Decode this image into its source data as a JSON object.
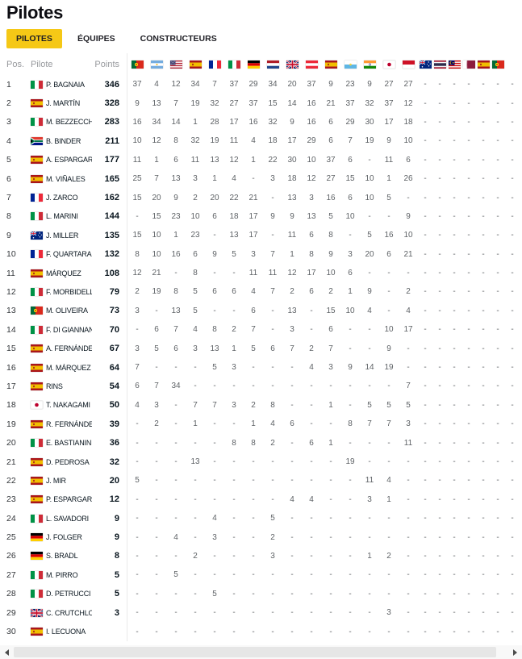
{
  "page": {
    "title": "Pilotes"
  },
  "colors": {
    "accent_yellow": "#f5c816",
    "header_text": "#97999d",
    "name_text": "#0a161f",
    "value_text": "#5e6266"
  },
  "tabs": [
    {
      "label": "PILOTES",
      "active": true
    },
    {
      "label": "ÉQUIPES",
      "active": false
    },
    {
      "label": "CONSTRUCTEURS",
      "active": false
    }
  ],
  "table": {
    "headers": {
      "pos": "Pos.",
      "rider": "Pilote",
      "points": "Points"
    },
    "race_flags": [
      "por",
      "arg",
      "usa",
      "esp",
      "fra",
      "ita",
      "ger",
      "ned",
      "gbr",
      "aut",
      "esp",
      "smr",
      "ind",
      "jpn",
      "ina",
      "aus",
      "tha",
      "mal",
      "qat",
      "esp",
      "por",
      ""
    ],
    "rows": [
      {
        "pos": "1",
        "nat": "ita",
        "name": "P. BAGNAIA",
        "points": "346",
        "results": [
          "37",
          "4",
          "12",
          "34",
          "7",
          "37",
          "29",
          "34",
          "20",
          "37",
          "9",
          "23",
          "9",
          "27",
          "27",
          "-",
          "-",
          "-",
          "-",
          "-",
          "-",
          "-"
        ]
      },
      {
        "pos": "2",
        "nat": "esp",
        "name": "J. MARTÍN",
        "points": "328",
        "results": [
          "9",
          "13",
          "7",
          "19",
          "32",
          "27",
          "37",
          "15",
          "14",
          "16",
          "21",
          "37",
          "32",
          "37",
          "12",
          "-",
          "-",
          "-",
          "-",
          "-",
          "-",
          "-"
        ]
      },
      {
        "pos": "3",
        "nat": "ita",
        "name": "M. BEZZECCHI",
        "points": "283",
        "results": [
          "16",
          "34",
          "14",
          "1",
          "28",
          "17",
          "16",
          "32",
          "9",
          "16",
          "6",
          "29",
          "30",
          "17",
          "18",
          "-",
          "-",
          "-",
          "-",
          "-",
          "-",
          "-"
        ]
      },
      {
        "pos": "4",
        "nat": "rsa",
        "name": "B. BINDER",
        "points": "211",
        "results": [
          "10",
          "12",
          "8",
          "32",
          "19",
          "11",
          "4",
          "18",
          "17",
          "29",
          "6",
          "7",
          "19",
          "9",
          "10",
          "-",
          "-",
          "-",
          "-",
          "-",
          "-",
          "-"
        ]
      },
      {
        "pos": "5",
        "nat": "esp",
        "name": "A. ESPARGARÓ",
        "points": "177",
        "results": [
          "11",
          "1",
          "6",
          "11",
          "13",
          "12",
          "1",
          "22",
          "30",
          "10",
          "37",
          "6",
          "-",
          "11",
          "6",
          "-",
          "-",
          "-",
          "-",
          "-",
          "-",
          "-"
        ]
      },
      {
        "pos": "6",
        "nat": "esp",
        "name": "M. VIÑALES",
        "points": "165",
        "results": [
          "25",
          "7",
          "13",
          "3",
          "1",
          "4",
          "-",
          "3",
          "18",
          "12",
          "27",
          "15",
          "10",
          "1",
          "26",
          "-",
          "-",
          "-",
          "-",
          "-",
          "-",
          "-"
        ]
      },
      {
        "pos": "7",
        "nat": "fra",
        "name": "J. ZARCO",
        "points": "162",
        "results": [
          "15",
          "20",
          "9",
          "2",
          "20",
          "22",
          "21",
          "-",
          "13",
          "3",
          "16",
          "6",
          "10",
          "5",
          "-",
          "-",
          "-",
          "-",
          "-",
          "-",
          "-",
          "-"
        ]
      },
      {
        "pos": "8",
        "nat": "ita",
        "name": "L. MARINI",
        "points": "144",
        "results": [
          "-",
          "15",
          "23",
          "10",
          "6",
          "18",
          "17",
          "9",
          "9",
          "13",
          "5",
          "10",
          "-",
          "-",
          "9",
          "-",
          "-",
          "-",
          "-",
          "-",
          "-",
          "-"
        ]
      },
      {
        "pos": "9",
        "nat": "aus",
        "name": "J. MILLER",
        "points": "135",
        "results": [
          "15",
          "10",
          "1",
          "23",
          "-",
          "13",
          "17",
          "-",
          "11",
          "6",
          "8",
          "-",
          "5",
          "16",
          "10",
          "-",
          "-",
          "-",
          "-",
          "-",
          "-",
          "-"
        ]
      },
      {
        "pos": "10",
        "nat": "fra",
        "name": "F. QUARTARARO",
        "points": "132",
        "results": [
          "8",
          "10",
          "16",
          "6",
          "9",
          "5",
          "3",
          "7",
          "1",
          "8",
          "9",
          "3",
          "20",
          "6",
          "21",
          "-",
          "-",
          "-",
          "-",
          "-",
          "-",
          "-"
        ]
      },
      {
        "pos": "11",
        "nat": "esp",
        "name": "MÁRQUEZ",
        "points": "108",
        "results": [
          "12",
          "21",
          "-",
          "8",
          "-",
          "-",
          "11",
          "11",
          "12",
          "17",
          "10",
          "6",
          "-",
          "-",
          "-",
          "-",
          "-",
          "-",
          "-",
          "-",
          "-",
          "-"
        ]
      },
      {
        "pos": "12",
        "nat": "ita",
        "name": "F. MORBIDELLI",
        "points": "79",
        "results": [
          "2",
          "19",
          "8",
          "5",
          "6",
          "6",
          "4",
          "7",
          "2",
          "6",
          "2",
          "1",
          "9",
          "-",
          "2",
          "-",
          "-",
          "-",
          "-",
          "-",
          "-",
          "-"
        ]
      },
      {
        "pos": "13",
        "nat": "por",
        "name": "M. OLIVEIRA",
        "points": "73",
        "results": [
          "3",
          "-",
          "13",
          "5",
          "-",
          "-",
          "6",
          "-",
          "13",
          "-",
          "15",
          "10",
          "4",
          "-",
          "4",
          "-",
          "-",
          "-",
          "-",
          "-",
          "-",
          "-"
        ]
      },
      {
        "pos": "14",
        "nat": "ita",
        "name": "F. DI GIANNANTONIO",
        "points": "70",
        "results": [
          "-",
          "6",
          "7",
          "4",
          "8",
          "2",
          "7",
          "-",
          "3",
          "-",
          "6",
          "-",
          "-",
          "10",
          "17",
          "-",
          "-",
          "-",
          "-",
          "-",
          "-",
          "-"
        ]
      },
      {
        "pos": "15",
        "nat": "esp",
        "name": "A. FERNÁNDEZ",
        "points": "67",
        "results": [
          "3",
          "5",
          "6",
          "3",
          "13",
          "1",
          "5",
          "6",
          "7",
          "2",
          "7",
          "-",
          "-",
          "9",
          "-",
          "-",
          "-",
          "-",
          "-",
          "-",
          "-",
          "-"
        ]
      },
      {
        "pos": "16",
        "nat": "esp",
        "name": "M. MÁRQUEZ",
        "points": "64",
        "results": [
          "7",
          "-",
          "-",
          "-",
          "5",
          "3",
          "-",
          "-",
          "-",
          "4",
          "3",
          "9",
          "14",
          "19",
          "-",
          "-",
          "-",
          "-",
          "-",
          "-",
          "-",
          "-"
        ]
      },
      {
        "pos": "17",
        "nat": "esp",
        "name": "RINS",
        "points": "54",
        "results": [
          "6",
          "7",
          "34",
          "-",
          "-",
          "-",
          "-",
          "-",
          "-",
          "-",
          "-",
          "-",
          "-",
          "-",
          "7",
          "-",
          "-",
          "-",
          "-",
          "-",
          "-",
          "-"
        ]
      },
      {
        "pos": "18",
        "nat": "jpn",
        "name": "T. NAKAGAMI",
        "points": "50",
        "results": [
          "4",
          "3",
          "-",
          "7",
          "7",
          "3",
          "2",
          "8",
          "-",
          "-",
          "1",
          "-",
          "5",
          "5",
          "5",
          "-",
          "-",
          "-",
          "-",
          "-",
          "-",
          "-"
        ]
      },
      {
        "pos": "19",
        "nat": "esp",
        "name": "R. FERNÁNDEZ",
        "points": "39",
        "results": [
          "-",
          "2",
          "-",
          "1",
          "-",
          "-",
          "1",
          "4",
          "6",
          "-",
          "-",
          "8",
          "7",
          "7",
          "3",
          "-",
          "-",
          "-",
          "-",
          "-",
          "-",
          "-"
        ]
      },
      {
        "pos": "20",
        "nat": "ita",
        "name": "E. BASTIANINI",
        "points": "36",
        "results": [
          "-",
          "-",
          "-",
          "-",
          "-",
          "8",
          "8",
          "2",
          "-",
          "6",
          "1",
          "-",
          "-",
          "-",
          "11",
          "-",
          "-",
          "-",
          "-",
          "-",
          "-",
          "-"
        ]
      },
      {
        "pos": "21",
        "nat": "esp",
        "name": "D. PEDROSA",
        "points": "32",
        "results": [
          "-",
          "-",
          "-",
          "13",
          "-",
          "-",
          "-",
          "-",
          "-",
          "-",
          "-",
          "19",
          "-",
          "-",
          "-",
          "-",
          "-",
          "-",
          "-",
          "-",
          "-",
          "-"
        ]
      },
      {
        "pos": "22",
        "nat": "esp",
        "name": "J. MIR",
        "points": "20",
        "results": [
          "5",
          "-",
          "-",
          "-",
          "-",
          "-",
          "-",
          "-",
          "-",
          "-",
          "-",
          "-",
          "11",
          "4",
          "-",
          "-",
          "-",
          "-",
          "-",
          "-",
          "-",
          "-"
        ]
      },
      {
        "pos": "23",
        "nat": "esp",
        "name": "P. ESPARGARÓ",
        "points": "12",
        "results": [
          "-",
          "-",
          "-",
          "-",
          "-",
          "-",
          "-",
          "-",
          "4",
          "4",
          "-",
          "-",
          "3",
          "1",
          "-",
          "-",
          "-",
          "-",
          "-",
          "-",
          "-",
          "-"
        ]
      },
      {
        "pos": "24",
        "nat": "ita",
        "name": "L. SAVADORI",
        "points": "9",
        "results": [
          "-",
          "-",
          "-",
          "-",
          "4",
          "-",
          "-",
          "5",
          "-",
          "-",
          "-",
          "-",
          "-",
          "-",
          "-",
          "-",
          "-",
          "-",
          "-",
          "-",
          "-",
          "-"
        ]
      },
      {
        "pos": "25",
        "nat": "ger",
        "name": "J. FOLGER",
        "points": "9",
        "results": [
          "-",
          "-",
          "4",
          "-",
          "3",
          "-",
          "-",
          "2",
          "-",
          "-",
          "-",
          "-",
          "-",
          "-",
          "-",
          "-",
          "-",
          "-",
          "-",
          "-",
          "-",
          "-"
        ]
      },
      {
        "pos": "26",
        "nat": "ger",
        "name": "S. BRADL",
        "points": "8",
        "results": [
          "-",
          "-",
          "-",
          "2",
          "-",
          "-",
          "-",
          "3",
          "-",
          "-",
          "-",
          "-",
          "1",
          "2",
          "-",
          "-",
          "-",
          "-",
          "-",
          "-",
          "-",
          "-"
        ]
      },
      {
        "pos": "27",
        "nat": "ita",
        "name": "M. PIRRO",
        "points": "5",
        "results": [
          "-",
          "-",
          "5",
          "-",
          "-",
          "-",
          "-",
          "-",
          "-",
          "-",
          "-",
          "-",
          "-",
          "-",
          "-",
          "-",
          "-",
          "-",
          "-",
          "-",
          "-",
          "-"
        ]
      },
      {
        "pos": "28",
        "nat": "ita",
        "name": "D. PETRUCCI",
        "points": "5",
        "results": [
          "-",
          "-",
          "-",
          "-",
          "5",
          "-",
          "-",
          "-",
          "-",
          "-",
          "-",
          "-",
          "-",
          "-",
          "-",
          "-",
          "-",
          "-",
          "-",
          "-",
          "-",
          "-"
        ]
      },
      {
        "pos": "29",
        "nat": "gbr",
        "name": "C. CRUTCHLOW",
        "points": "3",
        "results": [
          "-",
          "-",
          "-",
          "-",
          "-",
          "-",
          "-",
          "-",
          "-",
          "-",
          "-",
          "-",
          "-",
          "3",
          "-",
          "-",
          "-",
          "-",
          "-",
          "-",
          "-",
          "-"
        ]
      },
      {
        "pos": "30",
        "nat": "esp",
        "name": "I. LECUONA",
        "points": "",
        "results": [
          "-",
          "-",
          "-",
          "-",
          "-",
          "-",
          "-",
          "-",
          "-",
          "-",
          "-",
          "-",
          "-",
          "-",
          "-",
          "-",
          "-",
          "-",
          "-",
          "-",
          "-",
          "-"
        ]
      }
    ]
  },
  "scrollbar": {
    "left_arrow_icon": "triangle-left",
    "right_arrow_icon": "triangle-right"
  }
}
